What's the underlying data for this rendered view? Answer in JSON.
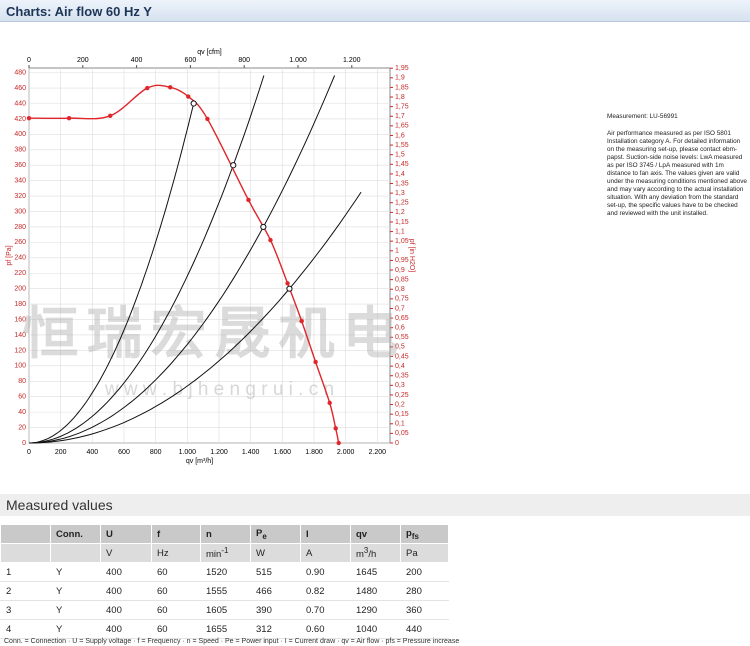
{
  "header": {
    "title": "Charts: Air flow 60 Hz Y"
  },
  "chart_data": {
    "type": "line",
    "ylabel": "pf [Pa]",
    "y2label": "pf [in H2O]",
    "xlabel": "qv [m³/h]",
    "x2label": "qv [cfm]",
    "watermark": "恒瑞宏晟机电",
    "watermark2": "w w w . b j h e n g r u i . c n",
    "xlim": [
      0,
      2280
    ],
    "xticks": [
      0,
      200,
      400,
      600,
      800,
      {
        "value": 1000,
        "label": "1.000"
      },
      {
        "value": 1200,
        "label": "1.200"
      },
      {
        "value": 1400,
        "label": "1.400"
      },
      {
        "value": 1600,
        "label": "1.600"
      },
      {
        "value": 1800,
        "label": "1.800"
      },
      {
        "value": 2000,
        "label": "2.000"
      },
      {
        "value": 2200,
        "label": "2.200"
      }
    ],
    "x2lim": [
      0,
      1342
    ],
    "x2ticks": [
      0,
      200,
      400,
      600,
      800,
      {
        "value": 1000,
        "label": "1.000"
      },
      {
        "value": 1200,
        "label": "1.200"
      }
    ],
    "ylim": [
      0,
      486
    ],
    "yticks": [
      0,
      20,
      40,
      60,
      80,
      100,
      120,
      140,
      160,
      180,
      200,
      220,
      240,
      260,
      280,
      300,
      320,
      340,
      360,
      380,
      400,
      420,
      440,
      460,
      480
    ],
    "y2lim": [
      0,
      1.951
    ],
    "y2ticks": [
      0,
      {
        "value": 0.05,
        "label": "0,05"
      },
      {
        "value": 0.1,
        "label": "0,1"
      },
      {
        "value": 0.15,
        "label": "0,15"
      },
      {
        "value": 0.2,
        "label": "0,2"
      },
      {
        "value": 0.25,
        "label": "0,25"
      },
      {
        "value": 0.3,
        "label": "0,3"
      },
      {
        "value": 0.35,
        "label": "0,35"
      },
      {
        "value": 0.4,
        "label": "0,4"
      },
      {
        "value": 0.45,
        "label": "0,45"
      },
      {
        "value": 0.5,
        "label": "0,5"
      },
      {
        "value": 0.55,
        "label": "0,55"
      },
      {
        "value": 0.6,
        "label": "0,6"
      },
      {
        "value": 0.65,
        "label": "0,65"
      },
      {
        "value": 0.7,
        "label": "0,7"
      },
      {
        "value": 0.75,
        "label": "0,75"
      },
      {
        "value": 0.8,
        "label": "0,8"
      },
      {
        "value": 0.85,
        "label": "0,85"
      },
      {
        "value": 0.9,
        "label": "0,9"
      },
      {
        "value": 0.95,
        "label": "0,95"
      },
      1,
      {
        "value": 1.05,
        "label": "1,05"
      },
      {
        "value": 1.1,
        "label": "1,1"
      },
      {
        "value": 1.15,
        "label": "1,15"
      },
      {
        "value": 1.2,
        "label": "1,2"
      },
      {
        "value": 1.25,
        "label": "1,25"
      },
      {
        "value": 1.3,
        "label": "1,3"
      },
      {
        "value": 1.35,
        "label": "1,35"
      },
      {
        "value": 1.4,
        "label": "1,4"
      },
      {
        "value": 1.45,
        "label": "1,45"
      },
      {
        "value": 1.5,
        "label": "1,5"
      },
      {
        "value": 1.55,
        "label": "1,55"
      },
      {
        "value": 1.6,
        "label": "1,6"
      },
      {
        "value": 1.65,
        "label": "1,65"
      },
      {
        "value": 1.7,
        "label": "1,7"
      },
      {
        "value": 1.75,
        "label": "1,75"
      },
      {
        "value": 1.8,
        "label": "1,8"
      },
      {
        "value": 1.85,
        "label": "1,85"
      },
      {
        "value": 1.9,
        "label": "1,9"
      },
      {
        "value": 1.95,
        "label": "1,95"
      }
    ],
    "grid": true,
    "series": [
      {
        "color": "#e0262b",
        "x": [
          0,
          253,
          513,
          747,
          892,
          1006,
          1127,
          1386,
          1525,
          1633,
          1722,
          1810,
          1899,
          1937,
          1956
        ],
        "values": [
          421,
          421,
          424,
          460,
          461,
          449,
          420,
          315,
          263,
          207,
          158,
          105,
          52,
          19,
          0
        ]
      }
    ]
  },
  "note": {
    "measurement": "Measurement: LU-56991",
    "text": "Air performance measured as per ISO 5801 Installation category A. For detailed information on the measuring set-up, please contact ebm-papst. Suction-side noise levels: LwA measured as per ISO 3745 / LpA measured with 1m distance to fan axis. The values given are valid under the measuring conditions mentioned above and may vary according to the actual installation situation. With any deviation from the standard set-up, the specific values have to be checked and reviewed with the unit installed."
  },
  "table": {
    "title": "Measured values",
    "header": [
      "Conn.",
      "U",
      "f",
      "n",
      [
        "P",
        "e"
      ],
      "I",
      "qv",
      [
        "p",
        "fs"
      ]
    ],
    "units": [
      "V",
      "Hz",
      [
        "min",
        "-1"
      ],
      "W",
      "A",
      [
        "m",
        "3",
        "/h"
      ],
      "Pa"
    ],
    "rows": [
      [
        "1",
        "Y",
        "400",
        "60",
        "1520",
        "515",
        "0.90",
        "1645",
        "200"
      ],
      [
        "2",
        "Y",
        "400",
        "60",
        "1555",
        "466",
        "0.82",
        "1480",
        "280"
      ],
      [
        "3",
        "Y",
        "400",
        "60",
        "1605",
        "390",
        "0.70",
        "1290",
        "360"
      ],
      [
        "4",
        "Y",
        "400",
        "60",
        "1655",
        "312",
        "0.60",
        "1040",
        "440"
      ]
    ],
    "footnote": "Conn. = Connection · U = Supply voltage · f = Frequency · n = Speed · Pe = Power input · I = Current draw · qv = Air flow · pfs = Pressure increase"
  }
}
